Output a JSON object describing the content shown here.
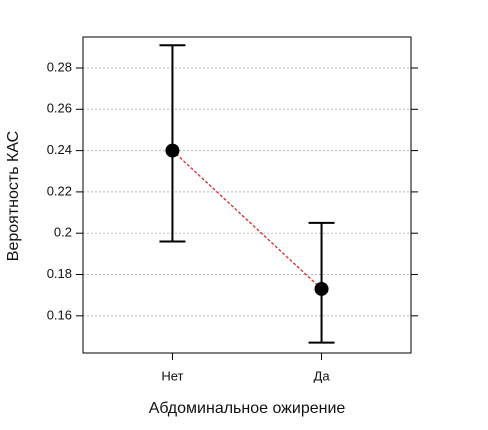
{
  "chart_data": {
    "type": "errorbar",
    "categories": [
      "Нет",
      "Да"
    ],
    "values": [
      0.24,
      0.173
    ],
    "lower": [
      0.196,
      0.147
    ],
    "upper": [
      0.291,
      0.205
    ],
    "xlabel": "Абдоминальное ожирение",
    "ylabel": "Вероятность КАС",
    "ylim": [
      0.142,
      0.295
    ],
    "yticks": [
      0.16,
      0.18,
      0.2,
      0.22,
      0.24,
      0.26,
      0.28
    ],
    "grid": true,
    "color": "#000000",
    "line_color": "#d62728"
  }
}
